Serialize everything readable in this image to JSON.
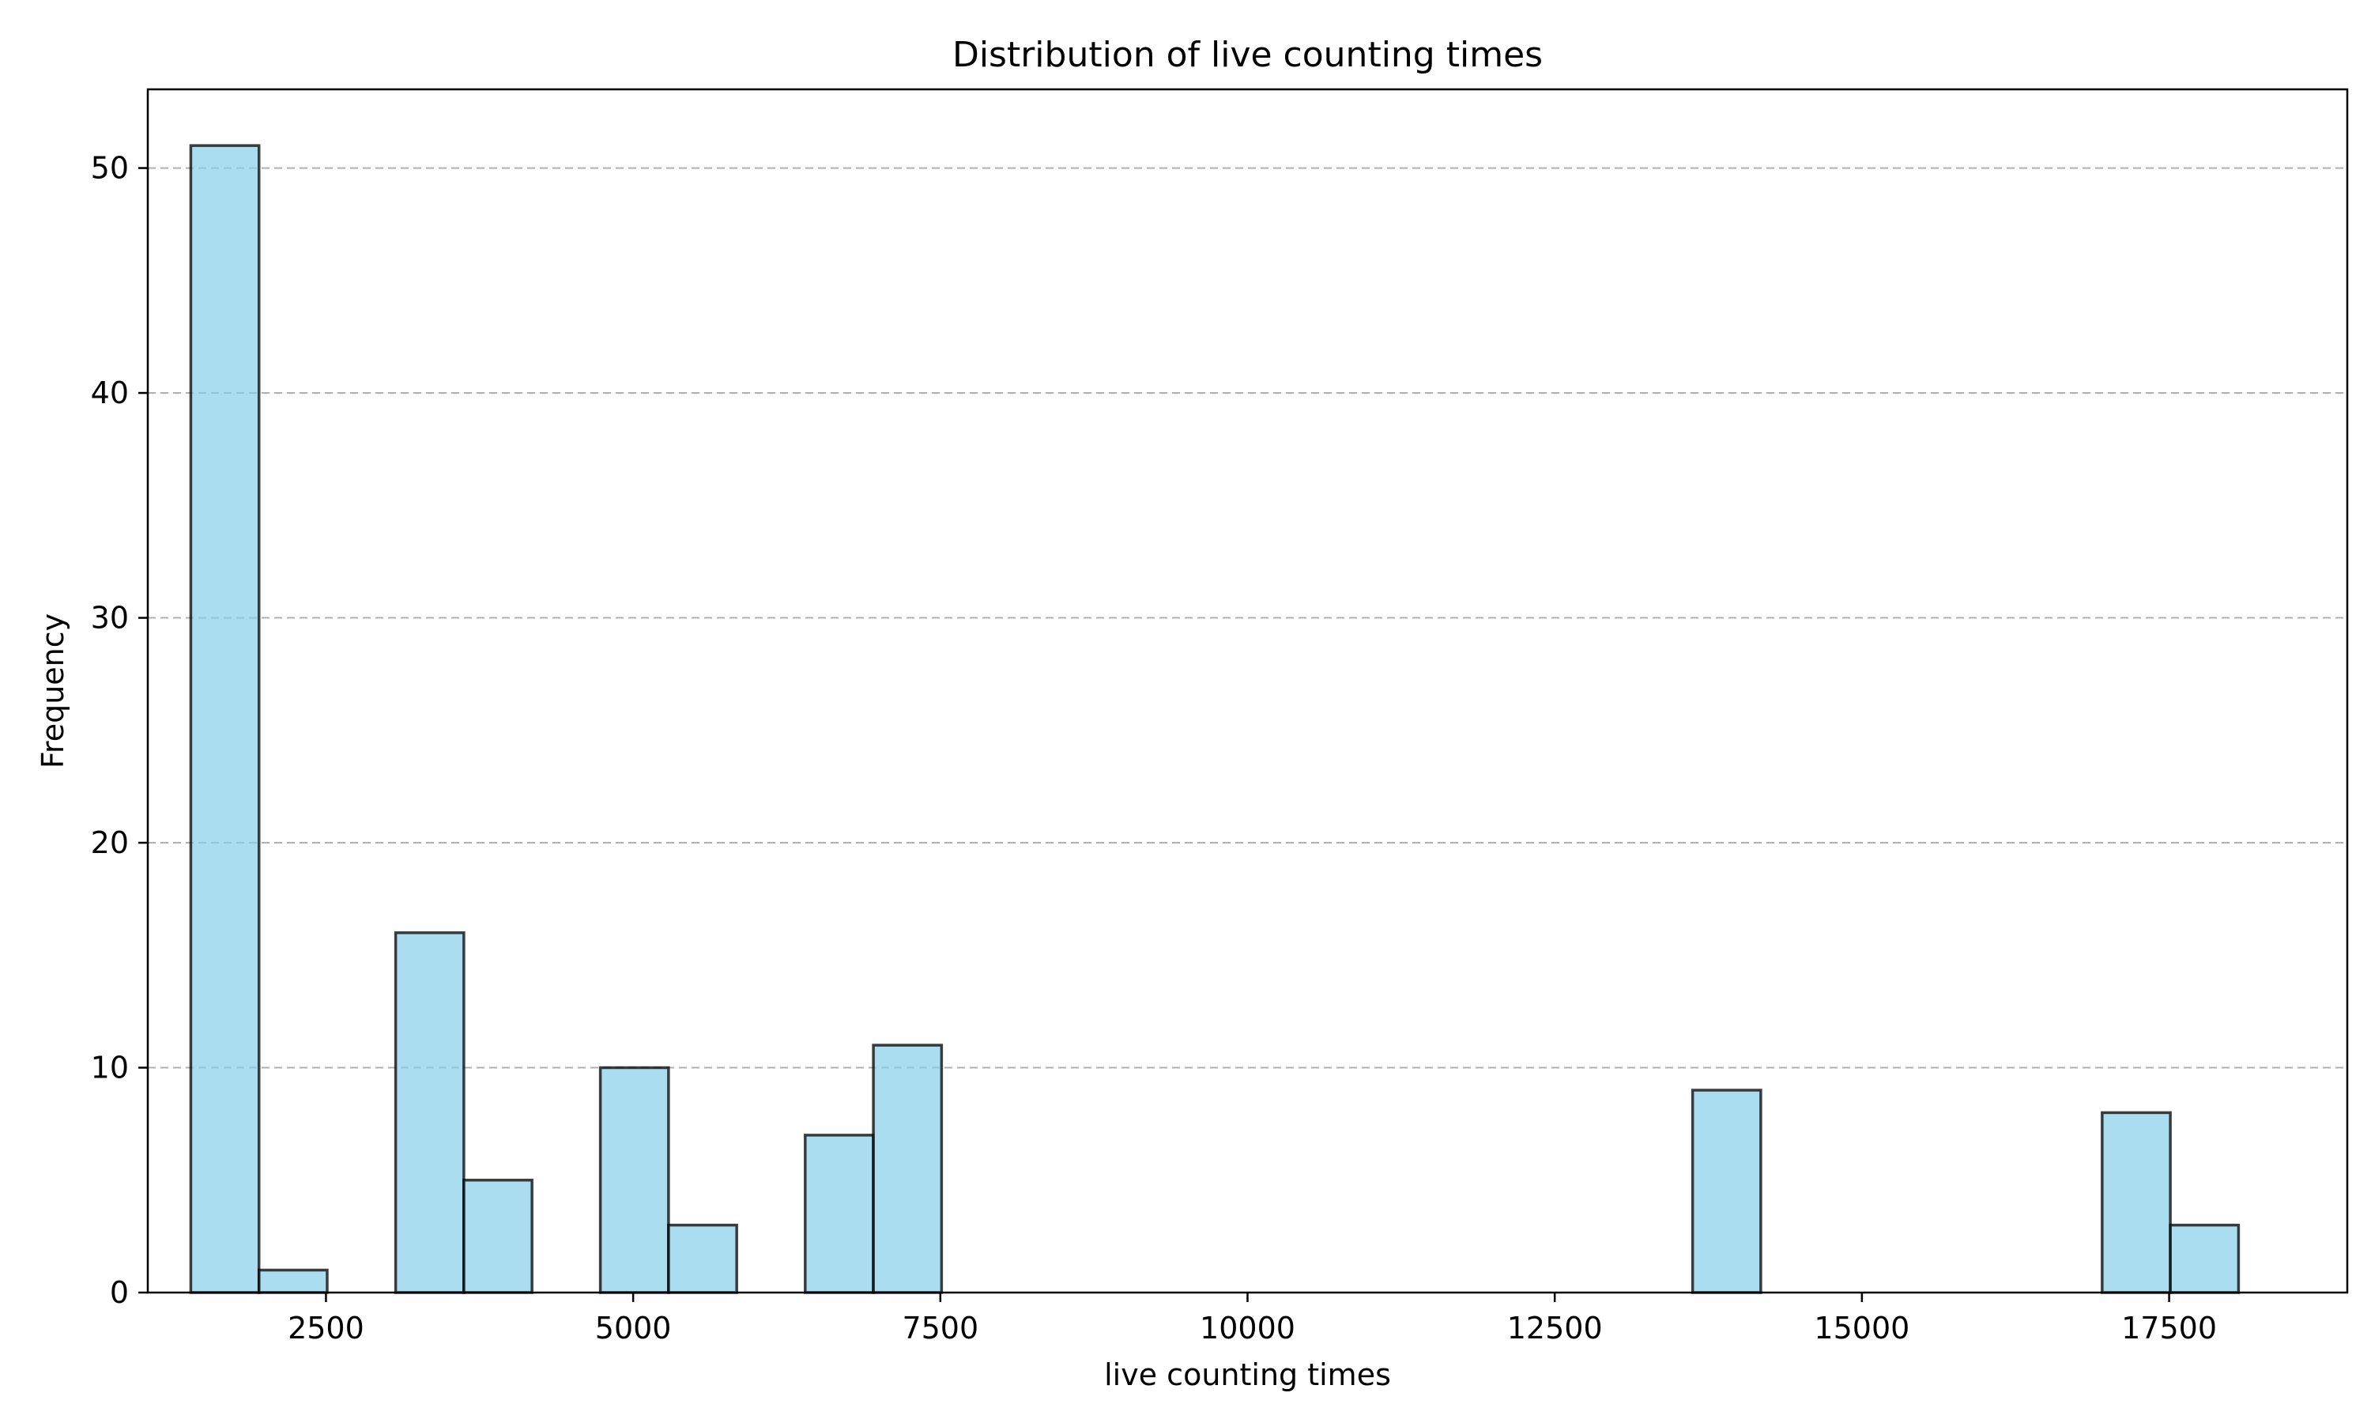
{
  "chart_data": {
    "type": "bar",
    "title": "Distribution of live counting times",
    "xlabel": "live counting times",
    "ylabel": "Frequency",
    "xlim": [
      1050,
      18950
    ],
    "ylim": [
      0,
      53.5
    ],
    "x_ticks": [
      2500,
      5000,
      7500,
      10000,
      12500,
      15000,
      17500
    ],
    "y_ticks": [
      0,
      10,
      20,
      30,
      40,
      50
    ],
    "grid": {
      "axis": "y",
      "style": "dashed"
    },
    "bar_fill": "#87CEEB",
    "bar_edge": "#000000",
    "bins": [
      {
        "x0": 1400,
        "x1": 1955,
        "count": 51
      },
      {
        "x0": 1955,
        "x1": 2510,
        "count": 1
      },
      {
        "x0": 3067,
        "x1": 3622,
        "count": 16
      },
      {
        "x0": 3622,
        "x1": 4177,
        "count": 5
      },
      {
        "x0": 4733,
        "x1": 5288,
        "count": 10
      },
      {
        "x0": 5288,
        "x1": 5843,
        "count": 3
      },
      {
        "x0": 6400,
        "x1": 6955,
        "count": 7
      },
      {
        "x0": 6955,
        "x1": 7510,
        "count": 11
      },
      {
        "x0": 13622,
        "x1": 14177,
        "count": 9
      },
      {
        "x0": 16955,
        "x1": 17510,
        "count": 8
      },
      {
        "x0": 17510,
        "x1": 18065,
        "count": 3
      }
    ]
  }
}
